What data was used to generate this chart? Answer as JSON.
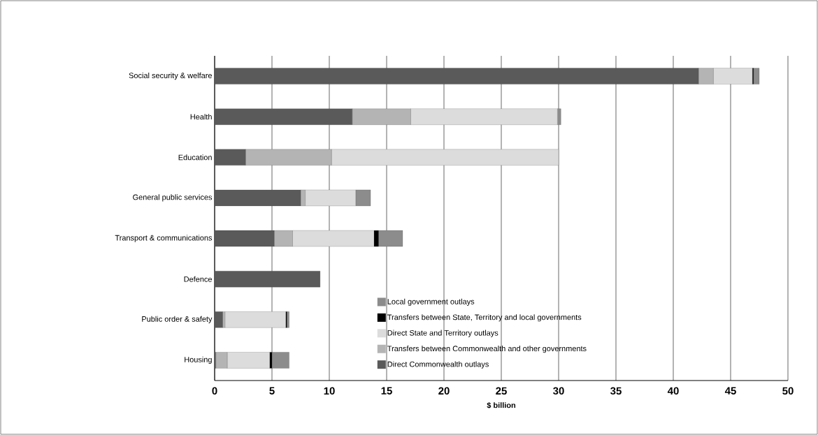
{
  "chart_data": {
    "type": "bar",
    "orientation": "horizontal",
    "stacked": true,
    "xlabel": "$ billion",
    "categories": [
      "Social security & welfare",
      "Health",
      "Education",
      "General public services",
      "Transport & communications",
      "Defence",
      "Public order & safety",
      "Housing"
    ],
    "series": [
      {
        "name": "Direct Commonwealth outlays",
        "color": "#5a5a5a",
        "values": [
          42.2,
          12.0,
          2.7,
          7.5,
          5.2,
          9.2,
          0.7,
          0.1
        ]
      },
      {
        "name": "Transfers between Commonwealth and other governments",
        "color": "#b4b4b4",
        "values": [
          1.3,
          5.1,
          7.5,
          0.4,
          1.6,
          0,
          0.2,
          1.0
        ]
      },
      {
        "name": "Direct State and Territory outlays",
        "color": "#dcdcdc",
        "values": [
          3.4,
          12.8,
          19.8,
          4.4,
          7.1,
          0,
          5.3,
          3.7
        ]
      },
      {
        "name": "Transfers between State, Territory and local governments",
        "color": "#000000",
        "values": [
          0.1,
          0,
          0,
          0,
          0.4,
          0,
          0.1,
          0.2
        ]
      },
      {
        "name": "Local government outlays",
        "color": "#8c8c8c",
        "values": [
          0.5,
          0.3,
          0,
          1.3,
          2.1,
          0,
          0.2,
          1.5
        ]
      }
    ],
    "xlim": [
      0,
      50
    ],
    "xticks": [
      0,
      5,
      10,
      15,
      20,
      25,
      30,
      35,
      40,
      45,
      50
    ],
    "grid": "x",
    "legend": "bottom right"
  }
}
